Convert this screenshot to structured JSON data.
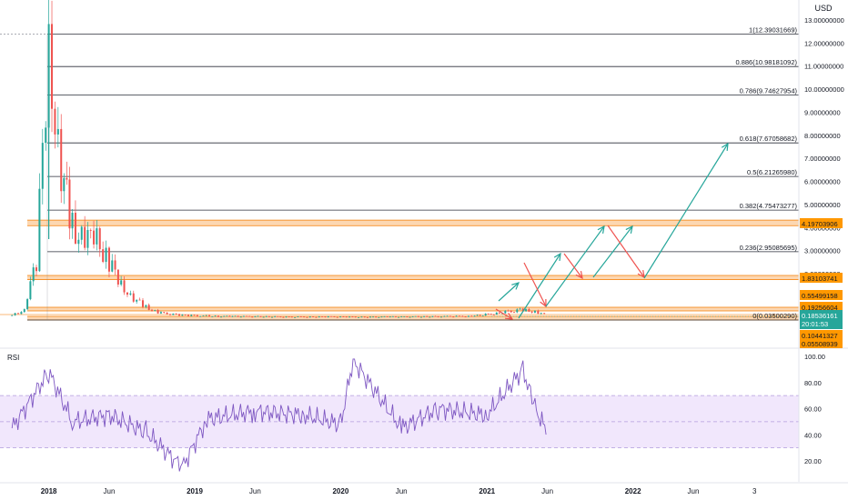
{
  "currency": "USD",
  "colors": {
    "up": "#26a69a",
    "down": "#ef5350",
    "fib_line": "#2a2e39",
    "zone_fill": "#f57c00",
    "zone_label": "#ff9800",
    "price_label": "#26a69a",
    "rsi_line": "#7e57c2",
    "rsi_band": "#ede1fb",
    "arrow_green": "#26a69a",
    "arrow_red": "#ef5350"
  },
  "price_label": {
    "value": "0.18536161",
    "countdown": "20:01:53"
  },
  "chart_data": [
    {
      "type": "candlestick",
      "panel": "price",
      "y_scale": "log",
      "ylim": [
        0.05,
        14
      ],
      "y_ticks": [
        "13.00000000",
        "12.00000000",
        "11.00000000",
        "10.00000000",
        "9.00000000",
        "8.00000000",
        "7.00000000",
        "6.00000000",
        "5.00000000",
        "4.00000000",
        "3.00000000",
        "2.00000000"
      ],
      "x_ticks": [
        "2018",
        "Jun",
        "2019",
        "Jun",
        "2020",
        "Jun",
        "2021",
        "Jun",
        "2022",
        "Jun",
        "3"
      ],
      "fib_levels": [
        {
          "ratio": "1",
          "value": 12.39031669,
          "label": "1(12.39031669)"
        },
        {
          "ratio": "0.886",
          "value": 10.98181092,
          "label": "0.886(10.98181092)"
        },
        {
          "ratio": "0.786",
          "value": 9.74627954,
          "label": "0.786(9.74627954)"
        },
        {
          "ratio": "0.618",
          "value": 7.67058682,
          "label": "0.618(7.67058682)"
        },
        {
          "ratio": "0.5",
          "value": 6.2126598,
          "label": "0.5(6.21265980)"
        },
        {
          "ratio": "0.382",
          "value": 4.75473277,
          "label": "0.382(4.75473277)"
        },
        {
          "ratio": "0.236",
          "value": 2.95085695,
          "label": "0.236(2.95085695)"
        },
        {
          "ratio": "0",
          "value": 0.0350029,
          "label": "0(0.03500290)"
        }
      ],
      "zone_labels": [
        "4.19703906",
        "1.83103741",
        "0.55499158",
        "0.19256604",
        "0.10441327",
        "0.05508939"
      ],
      "series": [
        {
          "name": "",
          "description": "weekly candles",
          "x": [
            "2017-10",
            "2017-11",
            "2017-12",
            "2018-01",
            "2018-02",
            "2018-03",
            "2018-04",
            "2018-05",
            "2018-06",
            "2018-07",
            "2018-08",
            "2018-09",
            "2018-10",
            "2018-12",
            "2019-03",
            "2019-06",
            "2019-09",
            "2019-12",
            "2020-03",
            "2020-06",
            "2020-09",
            "2020-12",
            "2021-02",
            "2021-04",
            "2021-05",
            "2021-06"
          ],
          "close": [
            0.2,
            0.4,
            2.5,
            12.3,
            6.5,
            4.0,
            3.3,
            3.5,
            2.5,
            1.6,
            0.9,
            0.55,
            0.3,
            0.2,
            0.15,
            0.14,
            0.12,
            0.13,
            0.12,
            0.13,
            0.14,
            0.16,
            0.3,
            0.45,
            0.35,
            0.19
          ]
        }
      ]
    },
    {
      "type": "line",
      "panel": "rsi",
      "title": "RSI",
      "ylim": [
        10,
        100
      ],
      "y_ticks": [
        "100.00",
        "80.00",
        "60.00",
        "40.00",
        "20.00"
      ],
      "band": [
        30,
        70
      ],
      "series": [
        {
          "name": "",
          "x": [
            "2017-10",
            "2018-01",
            "2018-03",
            "2018-06",
            "2018-09",
            "2018-12",
            "2019-02",
            "2019-06",
            "2019-10",
            "2020-01",
            "2020-02",
            "2020-06",
            "2020-09",
            "2021-01",
            "2021-04",
            "2021-05",
            "2021-06"
          ],
          "values": [
            45,
            88,
            50,
            55,
            42,
            15,
            52,
            58,
            55,
            48,
            97,
            45,
            60,
            55,
            90,
            60,
            42
          ]
        }
      ]
    }
  ]
}
